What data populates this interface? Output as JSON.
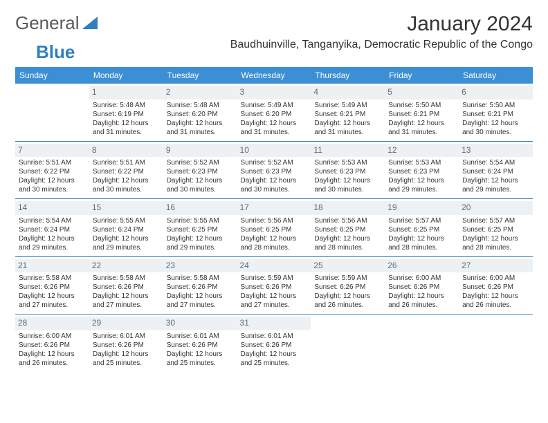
{
  "brand": {
    "part1": "General",
    "part2": "Blue"
  },
  "title": "January 2024",
  "location": "Baudhuinville, Tanganyika, Democratic Republic of the Congo",
  "colors": {
    "header_bg": "#3b8fd4",
    "header_text": "#ffffff",
    "daynum_bg": "#eef1f3",
    "daynum_text": "#5f6b73",
    "rule": "#2f7fc1",
    "brand_gray": "#5a5a5a",
    "brand_blue": "#2f7fc1"
  },
  "weekdays": [
    "Sunday",
    "Monday",
    "Tuesday",
    "Wednesday",
    "Thursday",
    "Friday",
    "Saturday"
  ],
  "weeks": [
    [
      {
        "n": "",
        "sr": "",
        "ss": "",
        "dl": ""
      },
      {
        "n": "1",
        "sr": "Sunrise: 5:48 AM",
        "ss": "Sunset: 6:19 PM",
        "dl": "Daylight: 12 hours and 31 minutes."
      },
      {
        "n": "2",
        "sr": "Sunrise: 5:48 AM",
        "ss": "Sunset: 6:20 PM",
        "dl": "Daylight: 12 hours and 31 minutes."
      },
      {
        "n": "3",
        "sr": "Sunrise: 5:49 AM",
        "ss": "Sunset: 6:20 PM",
        "dl": "Daylight: 12 hours and 31 minutes."
      },
      {
        "n": "4",
        "sr": "Sunrise: 5:49 AM",
        "ss": "Sunset: 6:21 PM",
        "dl": "Daylight: 12 hours and 31 minutes."
      },
      {
        "n": "5",
        "sr": "Sunrise: 5:50 AM",
        "ss": "Sunset: 6:21 PM",
        "dl": "Daylight: 12 hours and 31 minutes."
      },
      {
        "n": "6",
        "sr": "Sunrise: 5:50 AM",
        "ss": "Sunset: 6:21 PM",
        "dl": "Daylight: 12 hours and 30 minutes."
      }
    ],
    [
      {
        "n": "7",
        "sr": "Sunrise: 5:51 AM",
        "ss": "Sunset: 6:22 PM",
        "dl": "Daylight: 12 hours and 30 minutes."
      },
      {
        "n": "8",
        "sr": "Sunrise: 5:51 AM",
        "ss": "Sunset: 6:22 PM",
        "dl": "Daylight: 12 hours and 30 minutes."
      },
      {
        "n": "9",
        "sr": "Sunrise: 5:52 AM",
        "ss": "Sunset: 6:23 PM",
        "dl": "Daylight: 12 hours and 30 minutes."
      },
      {
        "n": "10",
        "sr": "Sunrise: 5:52 AM",
        "ss": "Sunset: 6:23 PM",
        "dl": "Daylight: 12 hours and 30 minutes."
      },
      {
        "n": "11",
        "sr": "Sunrise: 5:53 AM",
        "ss": "Sunset: 6:23 PM",
        "dl": "Daylight: 12 hours and 30 minutes."
      },
      {
        "n": "12",
        "sr": "Sunrise: 5:53 AM",
        "ss": "Sunset: 6:23 PM",
        "dl": "Daylight: 12 hours and 29 minutes."
      },
      {
        "n": "13",
        "sr": "Sunrise: 5:54 AM",
        "ss": "Sunset: 6:24 PM",
        "dl": "Daylight: 12 hours and 29 minutes."
      }
    ],
    [
      {
        "n": "14",
        "sr": "Sunrise: 5:54 AM",
        "ss": "Sunset: 6:24 PM",
        "dl": "Daylight: 12 hours and 29 minutes."
      },
      {
        "n": "15",
        "sr": "Sunrise: 5:55 AM",
        "ss": "Sunset: 6:24 PM",
        "dl": "Daylight: 12 hours and 29 minutes."
      },
      {
        "n": "16",
        "sr": "Sunrise: 5:55 AM",
        "ss": "Sunset: 6:25 PM",
        "dl": "Daylight: 12 hours and 29 minutes."
      },
      {
        "n": "17",
        "sr": "Sunrise: 5:56 AM",
        "ss": "Sunset: 6:25 PM",
        "dl": "Daylight: 12 hours and 28 minutes."
      },
      {
        "n": "18",
        "sr": "Sunrise: 5:56 AM",
        "ss": "Sunset: 6:25 PM",
        "dl": "Daylight: 12 hours and 28 minutes."
      },
      {
        "n": "19",
        "sr": "Sunrise: 5:57 AM",
        "ss": "Sunset: 6:25 PM",
        "dl": "Daylight: 12 hours and 28 minutes."
      },
      {
        "n": "20",
        "sr": "Sunrise: 5:57 AM",
        "ss": "Sunset: 6:25 PM",
        "dl": "Daylight: 12 hours and 28 minutes."
      }
    ],
    [
      {
        "n": "21",
        "sr": "Sunrise: 5:58 AM",
        "ss": "Sunset: 6:26 PM",
        "dl": "Daylight: 12 hours and 27 minutes."
      },
      {
        "n": "22",
        "sr": "Sunrise: 5:58 AM",
        "ss": "Sunset: 6:26 PM",
        "dl": "Daylight: 12 hours and 27 minutes."
      },
      {
        "n": "23",
        "sr": "Sunrise: 5:58 AM",
        "ss": "Sunset: 6:26 PM",
        "dl": "Daylight: 12 hours and 27 minutes."
      },
      {
        "n": "24",
        "sr": "Sunrise: 5:59 AM",
        "ss": "Sunset: 6:26 PM",
        "dl": "Daylight: 12 hours and 27 minutes."
      },
      {
        "n": "25",
        "sr": "Sunrise: 5:59 AM",
        "ss": "Sunset: 6:26 PM",
        "dl": "Daylight: 12 hours and 26 minutes."
      },
      {
        "n": "26",
        "sr": "Sunrise: 6:00 AM",
        "ss": "Sunset: 6:26 PM",
        "dl": "Daylight: 12 hours and 26 minutes."
      },
      {
        "n": "27",
        "sr": "Sunrise: 6:00 AM",
        "ss": "Sunset: 6:26 PM",
        "dl": "Daylight: 12 hours and 26 minutes."
      }
    ],
    [
      {
        "n": "28",
        "sr": "Sunrise: 6:00 AM",
        "ss": "Sunset: 6:26 PM",
        "dl": "Daylight: 12 hours and 26 minutes."
      },
      {
        "n": "29",
        "sr": "Sunrise: 6:01 AM",
        "ss": "Sunset: 6:26 PM",
        "dl": "Daylight: 12 hours and 25 minutes."
      },
      {
        "n": "30",
        "sr": "Sunrise: 6:01 AM",
        "ss": "Sunset: 6:26 PM",
        "dl": "Daylight: 12 hours and 25 minutes."
      },
      {
        "n": "31",
        "sr": "Sunrise: 6:01 AM",
        "ss": "Sunset: 6:26 PM",
        "dl": "Daylight: 12 hours and 25 minutes."
      },
      {
        "n": "",
        "sr": "",
        "ss": "",
        "dl": ""
      },
      {
        "n": "",
        "sr": "",
        "ss": "",
        "dl": ""
      },
      {
        "n": "",
        "sr": "",
        "ss": "",
        "dl": ""
      }
    ]
  ]
}
